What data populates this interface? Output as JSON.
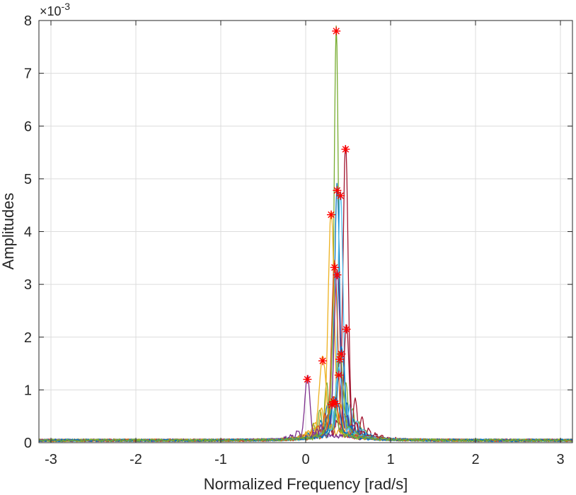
{
  "chart_data": {
    "type": "line",
    "title": "",
    "xlabel": "Normalized Frequency [rad/s]",
    "ylabel": "Amplitudes",
    "y_scale_multiplier": "×10^-3",
    "y_exponent_base": "×10",
    "y_exponent_power": "-3",
    "xlim": [
      -3.14159,
      3.14159
    ],
    "ylim": [
      0,
      8
    ],
    "x_ticks": [
      -3,
      -2,
      -1,
      0,
      1,
      2,
      3
    ],
    "x_tick_labels": [
      "-3",
      "-2",
      "-1",
      "0",
      "1",
      "2",
      "3"
    ],
    "y_ticks": [
      0,
      1,
      2,
      3,
      4,
      5,
      6,
      7,
      8
    ],
    "y_tick_labels": [
      "0",
      "1",
      "2",
      "3",
      "4",
      "5",
      "6",
      "7",
      "8"
    ],
    "grid": true,
    "legend": "none",
    "marker_color": "#ff0000",
    "series": [
      {
        "color": "#77ac30",
        "peak_x": 0.36,
        "peak_y": 7.8,
        "width": 0.025
      },
      {
        "color": "#a2142f",
        "peak_x": 0.47,
        "peak_y": 5.56,
        "width": 0.03
      },
      {
        "color": "#0072bd",
        "peak_x": 0.37,
        "peak_y": 4.78,
        "width": 0.03
      },
      {
        "color": "#4dbeee",
        "peak_x": 0.41,
        "peak_y": 4.68,
        "width": 0.03
      },
      {
        "color": "#edb120",
        "peak_x": 0.3,
        "peak_y": 4.32,
        "width": 0.035
      },
      {
        "color": "#d95319",
        "peak_x": 0.34,
        "peak_y": 3.32,
        "width": 0.035
      },
      {
        "color": "#7e2f8e",
        "peak_x": 0.37,
        "peak_y": 3.18,
        "width": 0.035
      },
      {
        "color": "#a2142f",
        "peak_x": 0.48,
        "peak_y": 2.15,
        "width": 0.03
      },
      {
        "color": "#0072bd",
        "peak_x": 0.42,
        "peak_y": 1.68,
        "width": 0.04
      },
      {
        "color": "#77ac30",
        "peak_x": 0.4,
        "peak_y": 1.58,
        "width": 0.04
      },
      {
        "color": "#edb120",
        "peak_x": 0.2,
        "peak_y": 1.55,
        "width": 0.04
      },
      {
        "color": "#4dbeee",
        "peak_x": 0.39,
        "peak_y": 1.28,
        "width": 0.04
      },
      {
        "color": "#7e2f8e",
        "peak_x": 0.02,
        "peak_y": 1.2,
        "width": 0.03
      },
      {
        "color": "#d95319",
        "peak_x": 0.33,
        "peak_y": 0.78,
        "width": 0.05
      },
      {
        "color": "#0072bd",
        "peak_x": 0.35,
        "peak_y": 0.74,
        "width": 0.05
      },
      {
        "color": "#77ac30",
        "peak_x": 0.31,
        "peak_y": 0.72,
        "width": 0.05
      }
    ],
    "peak_markers": [
      {
        "x": 0.36,
        "y": 7.8
      },
      {
        "x": 0.47,
        "y": 5.56
      },
      {
        "x": 0.37,
        "y": 4.78
      },
      {
        "x": 0.41,
        "y": 4.68
      },
      {
        "x": 0.3,
        "y": 4.32
      },
      {
        "x": 0.34,
        "y": 3.32
      },
      {
        "x": 0.37,
        "y": 3.18
      },
      {
        "x": 0.48,
        "y": 2.15
      },
      {
        "x": 0.42,
        "y": 1.68
      },
      {
        "x": 0.4,
        "y": 1.58
      },
      {
        "x": 0.2,
        "y": 1.55
      },
      {
        "x": 0.39,
        "y": 1.28
      },
      {
        "x": 0.02,
        "y": 1.2
      },
      {
        "x": 0.33,
        "y": 0.78
      },
      {
        "x": 0.35,
        "y": 0.74
      },
      {
        "x": 0.31,
        "y": 0.72
      }
    ]
  }
}
